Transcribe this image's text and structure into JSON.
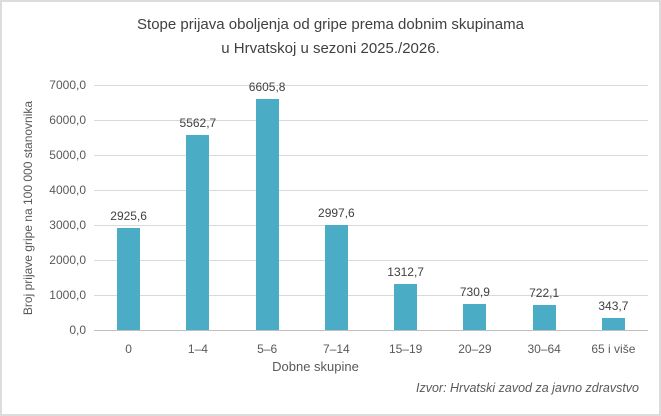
{
  "chart": {
    "title_lines": [
      "Stope prijava oboljenja od gripe prema dobnim skupinama",
      "u Hrvatskoj u sezoni 2025./2026."
    ],
    "source": "Izvor: Hrvatski zavod za javno zdravstvo"
  },
  "chart_data": {
    "type": "bar",
    "title": "Stope prijava oboljenja od gripe prema dobnim skupinama u Hrvatskoj u sezoni 2025./2026.",
    "categories": [
      "0",
      "1–4",
      "5–6",
      "7–14",
      "15–19",
      "20–29",
      "30–64",
      "65 i više"
    ],
    "values": [
      2925.6,
      5562.7,
      6605.8,
      2997.6,
      1312.7,
      730.9,
      722.1,
      343.7
    ],
    "value_labels": [
      "2925,6",
      "5562,7",
      "6605,8",
      "2997,6",
      "1312,7",
      "730,9",
      "722,1",
      "343,7"
    ],
    "xlabel": "Dobne skupine",
    "ylabel": "Broj prijave gripe na 100 000 stanovnika",
    "ylim": [
      0,
      7000
    ],
    "y_tick_step": 1000,
    "y_tick_labels": [
      "0,0",
      "1000,0",
      "2000,0",
      "3000,0",
      "4000,0",
      "5000,0",
      "6000,0",
      "7000,0"
    ],
    "grid": true,
    "legend": false,
    "colors": {
      "bar": "#4BACC6",
      "gridline": "#D9D9D9",
      "axis_line": "#BFBFBF",
      "title_text": "#404040",
      "tick_text": "#595959"
    }
  }
}
